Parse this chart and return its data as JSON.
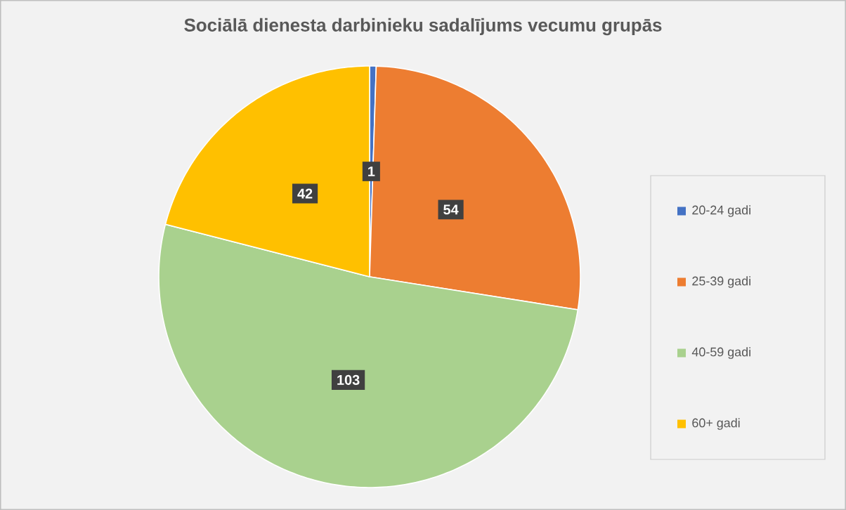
{
  "chart_data": {
    "type": "pie",
    "title": "Sociālā dienesta darbinieku sadalījums vecumu grupās",
    "categories": [
      "20-24 gadi",
      "25-39 gadi",
      "40-59 gadi",
      "60+ gadi"
    ],
    "values": [
      1,
      54,
      103,
      42
    ],
    "colors": [
      "#4472c4",
      "#ed7d31",
      "#a9d18e",
      "#ffc000"
    ],
    "data_labels": true,
    "legend": "right"
  }
}
